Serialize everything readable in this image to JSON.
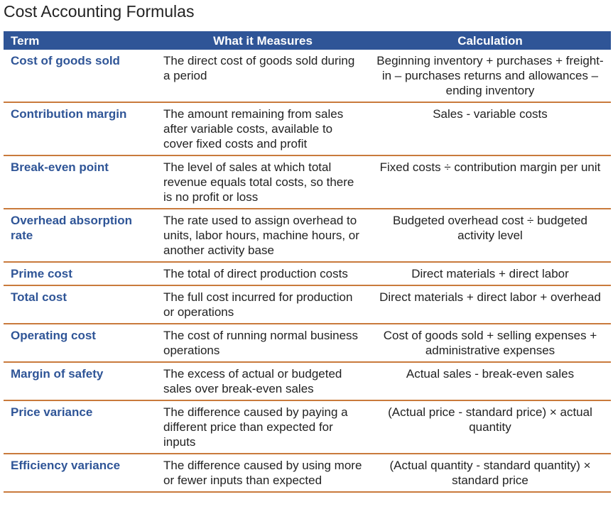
{
  "title": "Cost Accounting Formulas",
  "table": {
    "header": [
      "Term",
      "What it Measures",
      "Calculation"
    ],
    "rows": [
      [
        "Cost of goods sold",
        "The direct cost of goods sold during a period",
        "Beginning inventory + purchases + freight-in – purchases returns and allowances – ending inventory"
      ],
      [
        "Contribution margin",
        "The amount remaining from sales after variable costs, available to cover fixed costs and profit",
        "Sales - variable costs"
      ],
      [
        "Break-even point",
        "The level of sales at which total revenue equals total costs, so there is no profit or loss",
        "Fixed costs ÷ contribution margin per unit"
      ],
      [
        "Overhead absorption rate",
        "The rate used to assign overhead to units, labor hours, machine hours, or another activity base",
        "Budgeted overhead cost ÷ budgeted activity level"
      ],
      [
        "Prime cost",
        "The total of direct production costs",
        "Direct materials + direct labor"
      ],
      [
        "Total cost",
        "The full cost incurred for production or operations",
        "Direct materials + direct labor + overhead"
      ],
      [
        "Operating cost",
        "The cost of running normal business operations",
        "Cost of goods sold + selling expenses + administrative expenses"
      ],
      [
        "Margin of safety",
        "The excess of actual or budgeted sales over break-even sales",
        "Actual sales - break-even sales"
      ],
      [
        "Price variance",
        "The difference caused by paying a different price than expected for inputs",
        "(Actual price - standard price) × actual quantity"
      ],
      [
        "Efficiency variance",
        "The difference caused by using more or fewer inputs than expected",
        "(Actual quantity - standard quantity) × standard price"
      ]
    ]
  }
}
